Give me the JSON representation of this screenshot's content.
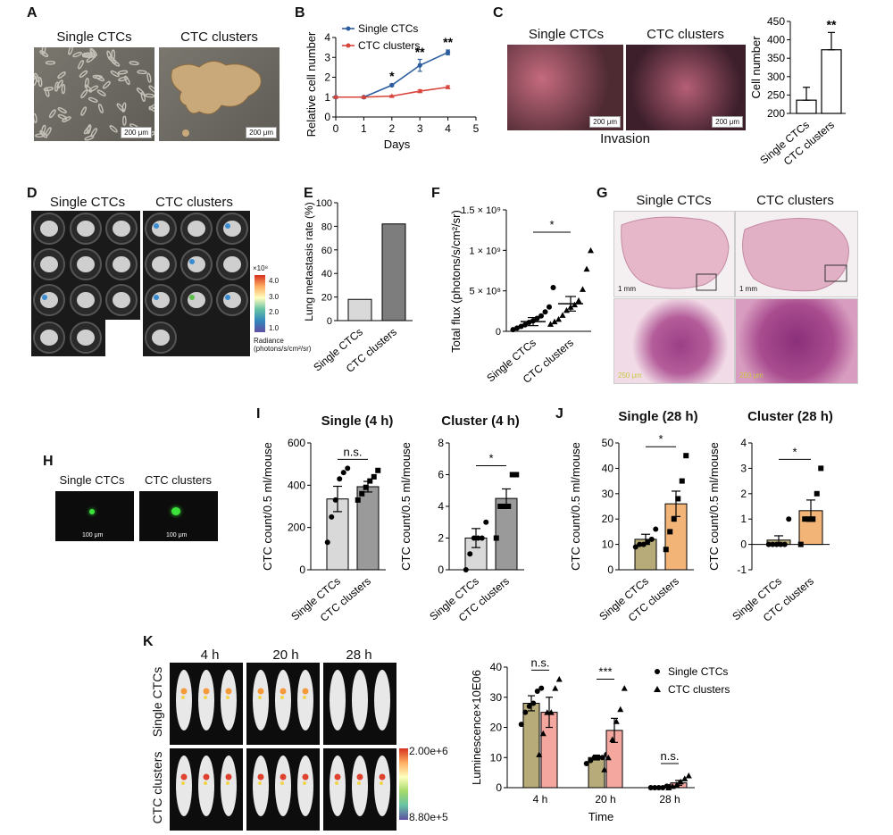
{
  "labels": {
    "A": "A",
    "B": "B",
    "C": "C",
    "D": "D",
    "E": "E",
    "F": "F",
    "G": "G",
    "H": "H",
    "I": "I",
    "J": "J",
    "K": "K"
  },
  "panelA": {
    "left_title": "Single CTCs",
    "right_title": "CTC clusters",
    "scale_left": "200 μm",
    "scale_right": "200 μm"
  },
  "panelC": {
    "left_title": "Single CTCs",
    "right_title": "CTC clusters",
    "scale_left": "200 μm",
    "scale_right": "200 μm",
    "caption": "Invasion"
  },
  "panelD": {
    "left_title": "Single CTCs",
    "right_title": "CTC clusters",
    "colorbar_exp": "×10⁸",
    "colorbar_ticks": [
      "4.0",
      "3.0",
      "2.0",
      "1.0"
    ],
    "colorbar_label1": "Radiance",
    "colorbar_label2": "(photons/s/cm²/sr)"
  },
  "panelG": {
    "left_title": "Single CTCs",
    "right_title": "CTC clusters",
    "scale_top_left": "1 mm",
    "scale_top_right": "1 mm",
    "scale_bot_left": "250 μm",
    "scale_bot_right": "250 μm"
  },
  "panelH": {
    "left_title": "Single CTCs",
    "right_title": "CTC clusters",
    "scale_left": "100 μm",
    "scale_right": "100 μm"
  },
  "panelI": {
    "title_left": "Single (4 h)",
    "title_right": "Cluster (4 h)"
  },
  "panelJ": {
    "title_left": "Single (28 h)",
    "title_right": "Cluster (28 h)"
  },
  "panelK": {
    "times": [
      "4 h",
      "20 h",
      "28 h"
    ],
    "row1": "Single CTCs",
    "row2": "CTC clusters",
    "cb_top": "2.00e+6",
    "cb_bot": "8.80e+5"
  },
  "colors": {
    "blue": "#2b5d9e",
    "red": "#d9443a",
    "olive": "#b7ac79",
    "salmon": "#f3a79f",
    "orange": "#f2b477",
    "lightgray": "#d9d9d9",
    "darkgray": "#7d7d7d",
    "black": "#000000"
  },
  "chart_data": [
    {
      "id": "B",
      "type": "line",
      "x": [
        0,
        1,
        2,
        3,
        4
      ],
      "xlabel": "Days",
      "ylabel": "Relative cell number",
      "xlim": [
        0,
        5
      ],
      "ylim": [
        0,
        4
      ],
      "xticks": [
        0,
        1,
        2,
        3,
        4,
        5
      ],
      "yticks": [
        0,
        1,
        2,
        3,
        4
      ],
      "series": [
        {
          "name": "Single CTCs",
          "values": [
            1,
            1.0,
            1.6,
            2.6,
            3.25
          ],
          "err": [
            0.03,
            0.03,
            0.05,
            0.3,
            0.12
          ],
          "color": "#2b5d9e"
        },
        {
          "name": "CTC clusters",
          "values": [
            1,
            1.0,
            1.05,
            1.3,
            1.5
          ],
          "err": [
            0.03,
            0.03,
            0.03,
            0.07,
            0.07
          ],
          "color": "#d9443a"
        }
      ],
      "annotations": [
        {
          "x": 2,
          "y": 1.85,
          "text": "*"
        },
        {
          "x": 3,
          "y": 3.05,
          "text": "**"
        },
        {
          "x": 4,
          "y": 3.55,
          "text": "**"
        }
      ],
      "legend": "top-left"
    },
    {
      "id": "C",
      "type": "bar",
      "categories": [
        "Single CTCs",
        "CTC clusters"
      ],
      "values": [
        236,
        373
      ],
      "err": [
        35,
        47
      ],
      "ylabel": "Cell number",
      "ylim": [
        200,
        450
      ],
      "yticks": [
        200,
        250,
        300,
        350,
        400,
        450
      ],
      "bar_colors": [
        "#ffffff",
        "#ffffff"
      ],
      "annotations": [
        {
          "category": "CTC clusters",
          "text": "**"
        }
      ]
    },
    {
      "id": "E",
      "type": "bar",
      "categories": [
        "Single CTCs",
        "CTC clusters"
      ],
      "values": [
        18,
        82
      ],
      "ylabel": "Lung metastasis rate (%)",
      "ylim": [
        0,
        100
      ],
      "yticks": [
        0,
        20,
        40,
        60,
        80,
        100
      ],
      "bar_colors": [
        "#d9d9d9",
        "#7d7d7d"
      ]
    },
    {
      "id": "F",
      "type": "scatter",
      "categories": [
        "Single CTCs",
        "CTC clusters"
      ],
      "ylabel": "Total flux (photons/s/cm²/sr)",
      "ylim": [
        0,
        1500000000
      ],
      "ytick_labels": [
        "0",
        "5 × 10⁸",
        "1 × 10⁹",
        "1.5 × 10⁹"
      ],
      "means": [
        120000000,
        340000000
      ],
      "err": [
        50000000,
        90000000
      ],
      "points": [
        [
          20000000,
          40000000,
          60000000,
          80000000,
          110000000,
          130000000,
          160000000,
          190000000,
          240000000,
          300000000,
          540000000
        ],
        [
          90000000,
          120000000,
          150000000,
          200000000,
          260000000,
          300000000,
          330000000,
          380000000,
          520000000,
          770000000,
          1000000000
        ]
      ],
      "annotations": [
        {
          "text": "*"
        }
      ]
    },
    {
      "id": "I1",
      "type": "bar",
      "title": "Single (4 h)",
      "categories": [
        "Single CTCs",
        "CTC clusters"
      ],
      "values": [
        335,
        393
      ],
      "err": [
        60,
        25
      ],
      "ylabel": "CTC count/0.5 ml/mouse",
      "ylim": [
        0,
        600
      ],
      "yticks": [
        0,
        200,
        400,
        600
      ],
      "bar_colors": [
        "#d9d9d9",
        "#9a9a9a"
      ],
      "points": [
        [
          130,
          250,
          330,
          430,
          460,
          480
        ],
        [
          330,
          360,
          390,
          420,
          440,
          470
        ]
      ],
      "annotations": [
        {
          "text": "n.s."
        }
      ]
    },
    {
      "id": "I2",
      "type": "bar",
      "title": "Cluster (4 h)",
      "categories": [
        "Single CTCs",
        "CTC clusters"
      ],
      "values": [
        2,
        4.5
      ],
      "err": [
        0.6,
        0.6
      ],
      "ylabel": "CTC count/0.5 ml/mouse",
      "ylim": [
        0,
        8
      ],
      "yticks": [
        0,
        2,
        4,
        6,
        8
      ],
      "bar_colors": [
        "#d9d9d9",
        "#9a9a9a"
      ],
      "points": [
        [
          0,
          1,
          2,
          2,
          2,
          3
        ],
        [
          2,
          4,
          4,
          4,
          6,
          6
        ]
      ],
      "annotations": [
        {
          "text": "*"
        }
      ]
    },
    {
      "id": "J1",
      "type": "bar",
      "title": "Single (28 h)",
      "categories": [
        "Single CTCs",
        "CTC clusters"
      ],
      "values": [
        12,
        26
      ],
      "err": [
        2,
        5
      ],
      "ylabel": "CTC count/0.5 ml/mouse",
      "ylim": [
        0,
        50
      ],
      "yticks": [
        0,
        10,
        20,
        30,
        40,
        50
      ],
      "bar_colors": [
        "#b7ac79",
        "#f2b477"
      ],
      "points": [
        [
          9,
          10,
          10,
          11,
          12,
          16
        ],
        [
          8,
          15,
          20,
          28,
          35,
          45
        ]
      ],
      "annotations": [
        {
          "text": "*"
        }
      ]
    },
    {
      "id": "J2",
      "type": "bar",
      "title": "Cluster (28 h)",
      "categories": [
        "Single CTCs",
        "CTC clusters"
      ],
      "values": [
        0.17,
        1.33
      ],
      "err": [
        0.17,
        0.42
      ],
      "ylabel": "CTC count/0.5 ml/mouse",
      "ylim": [
        -1,
        4
      ],
      "yticks": [
        -1,
        0,
        1,
        2,
        3,
        4
      ],
      "bar_colors": [
        "#b7ac79",
        "#f2b477"
      ],
      "points": [
        [
          0,
          0,
          0,
          0,
          0,
          1
        ],
        [
          0,
          1,
          1,
          1,
          2,
          3
        ]
      ],
      "annotations": [
        {
          "text": "*"
        }
      ]
    },
    {
      "id": "K",
      "type": "bar",
      "categories": [
        "4 h",
        "20 h",
        "28 h"
      ],
      "xlabel": "Time",
      "ylabel": "Luminescence×10E06",
      "ylim": [
        0,
        40
      ],
      "yticks": [
        0,
        10,
        20,
        30,
        40
      ],
      "series": [
        {
          "name": "Single CTCs",
          "values": [
            28,
            10,
            0.3
          ],
          "err": [
            2.5,
            0.8,
            0.1
          ],
          "color": "#b7ac79",
          "marker": "circle",
          "points": [
            [
              21,
              25,
              27,
              28,
              32,
              33
            ],
            [
              8,
              9,
              10,
              10,
              10,
              11
            ],
            [
              0,
              0,
              0,
              0,
              0.5,
              0.5
            ]
          ]
        },
        {
          "name": "CTC clusters",
          "values": [
            25,
            19,
            1.6
          ],
          "err": [
            5,
            4,
            0.8
          ],
          "color": "#f3a79f",
          "marker": "triangle",
          "points": [
            [
              11,
              18,
              25,
              25,
              33,
              36
            ],
            [
              6,
              10,
              16,
              22,
              26,
              33
            ],
            [
              0,
              0.5,
              1,
              2,
              3,
              4
            ]
          ]
        }
      ],
      "annotations": [
        {
          "category": "4 h",
          "text": "n.s."
        },
        {
          "category": "20 h",
          "text": "***"
        },
        {
          "category": "28 h",
          "text": "n.s."
        }
      ],
      "legend": "top-right"
    }
  ]
}
